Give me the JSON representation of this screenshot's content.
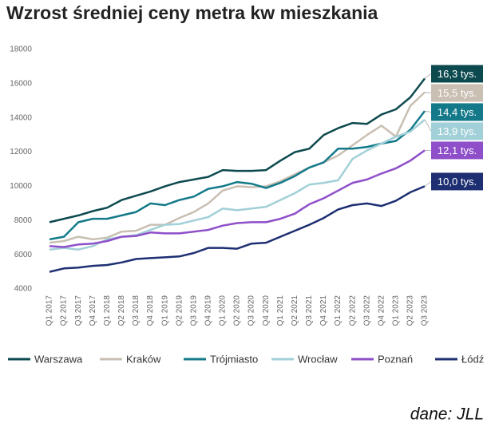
{
  "chart_data": {
    "type": "line",
    "title": "Wzrost średniej ceny metra kw mieszkania",
    "source": "dane: JLL",
    "categories": [
      "Q1 2017",
      "Q2 2017",
      "Q3 2017",
      "Q4 2017",
      "Q1 2018",
      "Q2 2018",
      "Q3 2018",
      "Q4 2018",
      "Q1 2019",
      "Q2 2019",
      "Q3 2019",
      "Q4 2019",
      "Q1 2020",
      "Q2 2020",
      "Q3 2020",
      "Q4 2020",
      "Q1 2021",
      "Q2 2021",
      "Q3 2021",
      "Q4 2021",
      "Q1 2022",
      "Q2 2022",
      "Q3 2022",
      "Q4 2022",
      "Q1 2023",
      "Q2 2023",
      "Q3 2023"
    ],
    "ylim": [
      4000,
      18000
    ],
    "yticks": [
      4000,
      6000,
      8000,
      10000,
      12000,
      14000,
      16000,
      18000
    ],
    "grid": false,
    "legend": "bottom",
    "series": [
      {
        "name": "Warszawa",
        "color": "#0d4a4f",
        "values": [
          7900,
          8100,
          8300,
          8550,
          8750,
          9200,
          9450,
          9700,
          10000,
          10250,
          10400,
          10550,
          10950,
          10900,
          10900,
          10950,
          11500,
          12000,
          12200,
          13000,
          13400,
          13700,
          13650,
          14200,
          14500,
          15200,
          16300
        ],
        "value_labels": [
          null,
          null,
          null,
          null,
          null,
          null,
          null,
          null,
          null,
          null,
          null,
          null,
          null,
          null,
          null,
          null,
          null,
          null,
          null,
          null,
          null,
          null,
          null,
          null,
          null,
          null,
          "16,3 tys."
        ]
      },
      {
        "name": "Kraków",
        "color": "#c9bfb3",
        "values": [
          6700,
          6800,
          7050,
          6900,
          7000,
          7350,
          7400,
          7750,
          7750,
          8150,
          8500,
          9000,
          9750,
          10000,
          9950,
          10000,
          10300,
          10700,
          11100,
          11400,
          11800,
          12400,
          13000,
          13550,
          12900,
          14700,
          15500
        ],
        "value_labels": [
          null,
          null,
          null,
          null,
          null,
          null,
          null,
          null,
          null,
          null,
          null,
          null,
          null,
          null,
          null,
          null,
          null,
          null,
          null,
          null,
          null,
          null,
          null,
          null,
          null,
          null,
          "15,5 tys."
        ]
      },
      {
        "name": "Trójmiasto",
        "color": "#147a8a",
        "values": [
          6900,
          7050,
          7900,
          8100,
          8100,
          8300,
          8500,
          9000,
          8900,
          9200,
          9400,
          9850,
          10000,
          10250,
          10150,
          9900,
          10200,
          10600,
          11100,
          11400,
          12200,
          12200,
          12300,
          12500,
          12650,
          13300,
          14400
        ],
        "value_labels": [
          null,
          null,
          null,
          null,
          null,
          null,
          null,
          null,
          null,
          null,
          null,
          null,
          null,
          null,
          null,
          null,
          null,
          null,
          null,
          null,
          null,
          null,
          null,
          null,
          null,
          null,
          "14,4 tys."
        ]
      },
      {
        "name": "Wrocław",
        "color": "#a2d0d8",
        "values": [
          6300,
          6400,
          6300,
          6500,
          6900,
          7050,
          7150,
          7450,
          7750,
          7800,
          8000,
          8200,
          8700,
          8600,
          8700,
          8800,
          9200,
          9600,
          10100,
          10200,
          10350,
          11600,
          12100,
          12500,
          12900,
          13200,
          13900
        ],
        "value_labels": [
          null,
          null,
          null,
          null,
          null,
          null,
          null,
          null,
          null,
          null,
          null,
          null,
          null,
          null,
          null,
          null,
          null,
          null,
          null,
          null,
          null,
          null,
          null,
          null,
          null,
          null,
          "13,9 tys."
        ]
      },
      {
        "name": "Poznań",
        "color": "#8e4fc9",
        "values": [
          6500,
          6450,
          6600,
          6650,
          6800,
          7050,
          7100,
          7300,
          7250,
          7250,
          7350,
          7450,
          7700,
          7850,
          7900,
          7900,
          8100,
          8400,
          8950,
          9300,
          9750,
          10200,
          10400,
          10750,
          11050,
          11500,
          12100
        ],
        "value_labels": [
          null,
          null,
          null,
          null,
          null,
          null,
          null,
          null,
          null,
          null,
          null,
          null,
          null,
          null,
          null,
          null,
          null,
          null,
          null,
          null,
          null,
          null,
          null,
          null,
          null,
          null,
          "12,1 tys."
        ]
      },
      {
        "name": "Łódź",
        "color": "#1d2f72",
        "values": [
          5000,
          5200,
          5250,
          5350,
          5400,
          5550,
          5750,
          5800,
          5850,
          5900,
          6100,
          6400,
          6400,
          6350,
          6650,
          6700,
          7050,
          7400,
          7750,
          8150,
          8650,
          8900,
          9000,
          8850,
          9150,
          9650,
          10000
        ],
        "value_labels": [
          null,
          null,
          null,
          null,
          null,
          null,
          null,
          null,
          null,
          null,
          null,
          null,
          null,
          null,
          null,
          null,
          null,
          null,
          null,
          null,
          null,
          null,
          null,
          null,
          null,
          null,
          "10,0 tys."
        ]
      }
    ]
  }
}
